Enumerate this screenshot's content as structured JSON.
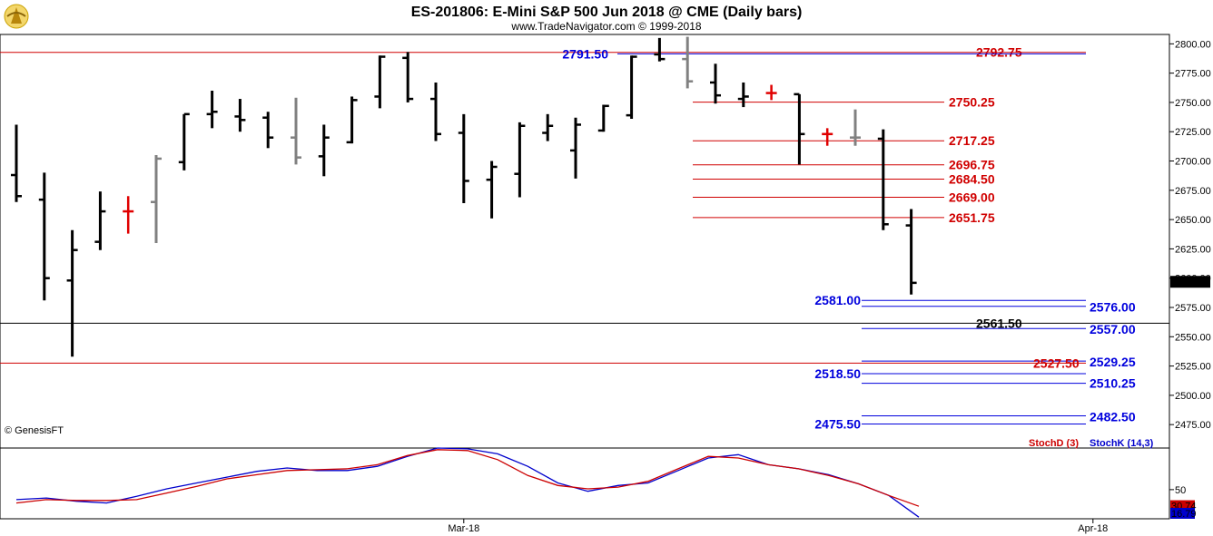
{
  "title": "ES-201806:  E-Mini S&P 500 Jun 2018 @ CME  (Daily bars)",
  "subtitle": "www.TradeNavigator.com © 1999-2018",
  "copyright": "© GenesisFT",
  "icon": "genesis-logo-icon",
  "colors": {
    "up": "#000000",
    "neutral": "#808080",
    "doji": "#e00000",
    "red_level": "#d00000",
    "blue_level": "#0000dd",
    "stochK": "#0000cc",
    "stochD": "#cc0000"
  },
  "chart_data": [
    {
      "type": "ohlc",
      "ylim": [
        2455,
        2808
      ],
      "yticks": [
        "2800.00",
        "2775.00",
        "2750.00",
        "2725.00",
        "2700.00",
        "2675.00",
        "2650.00",
        "2625.00",
        "2600.00",
        "2575.00",
        "2550.00",
        "2525.00",
        "2500.00",
        "2475.00"
      ],
      "xticks": [
        {
          "label": "Mar-18",
          "bar": 16
        },
        {
          "label": "Apr-18",
          "bar": 38.5
        }
      ],
      "last_price": "2596.50",
      "bars": [
        {
          "o": 2688,
          "h": 2731,
          "l": 2665,
          "c": 2670
        },
        {
          "o": 2667,
          "h": 2690,
          "l": 2581,
          "c": 2600
        },
        {
          "o": 2598,
          "h": 2641,
          "l": 2533,
          "c": 2624
        },
        {
          "o": 2631,
          "h": 2674,
          "l": 2624,
          "c": 2657
        },
        {
          "o": 2657,
          "h": 2670,
          "l": 2638,
          "c": 2657,
          "doji": true
        },
        {
          "o": 2665,
          "h": 2705,
          "l": 2630,
          "c": 2702,
          "neutral": true
        },
        {
          "o": 2699,
          "h": 2740,
          "l": 2692,
          "c": 2740
        },
        {
          "o": 2740,
          "h": 2760,
          "l": 2728,
          "c": 2742
        },
        {
          "o": 2738,
          "h": 2753,
          "l": 2725,
          "c": 2735
        },
        {
          "o": 2737,
          "h": 2742,
          "l": 2711,
          "c": 2720
        },
        {
          "o": 2720,
          "h": 2754,
          "l": 2697,
          "c": 2703,
          "neutral": true
        },
        {
          "o": 2704,
          "h": 2731,
          "l": 2687,
          "c": 2720
        },
        {
          "o": 2716,
          "h": 2755,
          "l": 2715,
          "c": 2752
        },
        {
          "o": 2755,
          "h": 2790,
          "l": 2745,
          "c": 2789
        },
        {
          "o": 2788,
          "h": 2793,
          "l": 2750,
          "c": 2753
        },
        {
          "o": 2753,
          "h": 2767,
          "l": 2717,
          "c": 2723
        },
        {
          "o": 2724,
          "h": 2740,
          "l": 2664,
          "c": 2683
        },
        {
          "o": 2684,
          "h": 2700,
          "l": 2651,
          "c": 2695
        },
        {
          "o": 2689,
          "h": 2733,
          "l": 2669,
          "c": 2730
        },
        {
          "o": 2724,
          "h": 2740,
          "l": 2717,
          "c": 2730
        },
        {
          "o": 2709,
          "h": 2737,
          "l": 2685,
          "c": 2731
        },
        {
          "o": 2726,
          "h": 2748,
          "l": 2725,
          "c": 2747
        },
        {
          "o": 2739,
          "h": 2790,
          "l": 2736,
          "c": 2789
        },
        {
          "o": 2791,
          "h": 2805,
          "l": 2785,
          "c": 2787,
          "doji": false
        },
        {
          "o": 2787,
          "h": 2806,
          "l": 2762,
          "c": 2768,
          "neutral": true
        },
        {
          "o": 2767,
          "h": 2783,
          "l": 2749,
          "c": 2756
        },
        {
          "o": 2753,
          "h": 2767,
          "l": 2746,
          "c": 2755,
          "bracket": true
        },
        {
          "o": 2758,
          "h": 2765,
          "l": 2752,
          "c": 2758,
          "doji": true
        },
        {
          "o": 2757,
          "h": 2757,
          "l": 2697,
          "c": 2723
        },
        {
          "o": 2723,
          "h": 2728,
          "l": 2713,
          "c": 2723,
          "doji": true
        },
        {
          "o": 2720,
          "h": 2744,
          "l": 2713,
          "c": 2720,
          "neutral": true
        },
        {
          "o": 2719,
          "h": 2727,
          "l": 2641,
          "c": 2646
        },
        {
          "o": 2645,
          "h": 2659,
          "l": 2586,
          "c": 2596
        }
      ],
      "levels": [
        {
          "label": "2792.75",
          "value": 2792.75,
          "color": "red",
          "line": "full"
        },
        {
          "label": "2791.50",
          "value": 2791.5,
          "color": "blue",
          "line": "full"
        },
        {
          "label": "2750.25",
          "value": 2750.25,
          "color": "red",
          "line": "right"
        },
        {
          "label": "2717.25",
          "value": 2717.25,
          "color": "red",
          "line": "right"
        },
        {
          "label": "2696.75",
          "value": 2696.75,
          "color": "red",
          "line": "right"
        },
        {
          "label": "2684.50",
          "value": 2684.5,
          "color": "red",
          "line": "right"
        },
        {
          "label": "2669.00",
          "value": 2669.0,
          "color": "red",
          "line": "right"
        },
        {
          "label": "2651.75",
          "value": 2651.75,
          "color": "red",
          "line": "right"
        },
        {
          "label": "2581.00",
          "value": 2581.0,
          "color": "blue",
          "line": "right"
        },
        {
          "label": "2576.00",
          "value": 2576.0,
          "color": "blue",
          "line": "right"
        },
        {
          "label": "2561.50",
          "value": 2561.5,
          "color": "black",
          "line": "full"
        },
        {
          "label": "2557.00",
          "value": 2557.0,
          "color": "blue",
          "line": "right"
        },
        {
          "label": "2529.25",
          "value": 2529.25,
          "color": "blue",
          "line": "right"
        },
        {
          "label": "2527.50",
          "value": 2527.5,
          "color": "red",
          "line": "full"
        },
        {
          "label": "2518.50",
          "value": 2518.5,
          "color": "blue",
          "line": "right"
        },
        {
          "label": "2510.25",
          "value": 2510.25,
          "color": "blue",
          "line": "right"
        },
        {
          "label": "2482.50",
          "value": 2482.5,
          "color": "blue",
          "line": "right"
        },
        {
          "label": "2475.50",
          "value": 2475.5,
          "color": "blue",
          "line": "right"
        }
      ]
    },
    {
      "type": "line",
      "title_k": "StochK (14,3)",
      "title_d": "StochD (3)",
      "ylim": [
        15,
        100
      ],
      "ytick": "50",
      "last_k": "16.79",
      "last_d": "30.74",
      "series": [
        {
          "name": "StochK (14,3)",
          "values": [
            38,
            40,
            36,
            34,
            42,
            51,
            58,
            65,
            72,
            76,
            73,
            73,
            78,
            90,
            100,
            99,
            93,
            78,
            58,
            48,
            55,
            58,
            73,
            88,
            92,
            80,
            75,
            68,
            57,
            43,
            17
          ]
        },
        {
          "name": "StochD (3)",
          "values": [
            34,
            38,
            37,
            37,
            38,
            46,
            54,
            63,
            68,
            73,
            74,
            75,
            80,
            91,
            98,
            97,
            86,
            67,
            55,
            51,
            53,
            60,
            75,
            90,
            88,
            80,
            75,
            67,
            57,
            43,
            30
          ]
        }
      ]
    }
  ]
}
